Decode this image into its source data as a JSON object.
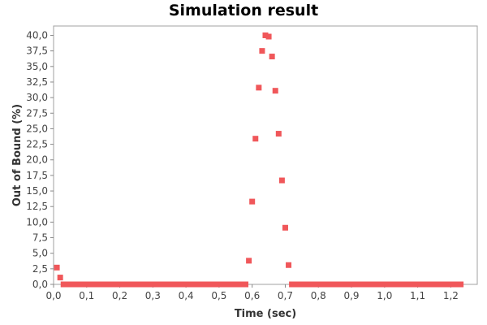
{
  "chart_data": {
    "type": "scatter",
    "title": "Simulation result",
    "xlabel": "Time (sec)",
    "ylabel": "Out of Bound (%)",
    "xlim": [
      0.0,
      1.28
    ],
    "ylim": [
      0.0,
      41.5
    ],
    "xticks": [
      "0,0",
      "0,1",
      "0,2",
      "0,3",
      "0,4",
      "0,5",
      "0,6",
      "0,7",
      "0,8",
      "0,9",
      "1,0",
      "1,1",
      "1,2"
    ],
    "yticks": [
      "0,0",
      "2,5",
      "5,0",
      "7,5",
      "10,0",
      "12,5",
      "15,0",
      "17,5",
      "20,0",
      "22,5",
      "25,0",
      "27,5",
      "30,0",
      "32,5",
      "35,0",
      "37,5",
      "40,0"
    ],
    "grid": false,
    "legend": "none",
    "marker_color": "#F0575A",
    "series": [
      {
        "points": [
          {
            "x": 0.01,
            "y": 2.7
          },
          {
            "x": 0.02,
            "y": 1.1
          },
          {
            "x": 0.59,
            "y": 3.8
          },
          {
            "x": 0.6,
            "y": 13.3
          },
          {
            "x": 0.61,
            "y": 23.4
          },
          {
            "x": 0.62,
            "y": 31.6
          },
          {
            "x": 0.63,
            "y": 37.5
          },
          {
            "x": 0.64,
            "y": 40.0
          },
          {
            "x": 0.65,
            "y": 39.8
          },
          {
            "x": 0.66,
            "y": 36.6
          },
          {
            "x": 0.67,
            "y": 31.1
          },
          {
            "x": 0.68,
            "y": 24.2
          },
          {
            "x": 0.69,
            "y": 16.7
          },
          {
            "x": 0.7,
            "y": 9.1
          },
          {
            "x": 0.71,
            "y": 3.1
          }
        ],
        "zero_runs": [
          {
            "x_start": 0.03,
            "x_end": 0.58,
            "y": 0.0
          },
          {
            "x_start": 0.72,
            "x_end": 1.23,
            "y": 0.0
          }
        ]
      }
    ]
  }
}
